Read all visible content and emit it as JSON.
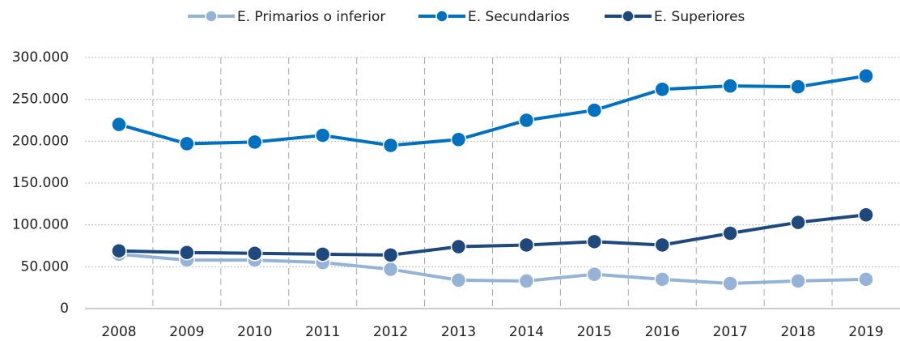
{
  "chart_data": {
    "type": "line",
    "categories": [
      "2008",
      "2009",
      "2010",
      "2011",
      "2012",
      "2013",
      "2014",
      "2015",
      "2016",
      "2017",
      "2018",
      "2019"
    ],
    "series": [
      {
        "name": "E. Primarios o inferior",
        "color": "#95b3d7",
        "values": [
          65000,
          58000,
          58000,
          55000,
          47000,
          34000,
          33000,
          41000,
          35000,
          30000,
          33000,
          35000
        ]
      },
      {
        "name": "E. Secundarios",
        "color": "#0070c0",
        "values": [
          220000,
          197000,
          199000,
          207000,
          195000,
          202000,
          225000,
          237000,
          262000,
          266000,
          265000,
          278000
        ]
      },
      {
        "name": "E. Superiores",
        "color": "#1f497d",
        "values": [
          69000,
          67000,
          66000,
          65000,
          64000,
          74000,
          76000,
          80000,
          76000,
          90000,
          103000,
          112000
        ]
      }
    ],
    "ylim": [
      0,
      300000
    ],
    "yticks": [
      0,
      {
        "value": 50000,
        "label": "50.000"
      },
      {
        "value": 100000,
        "label": "100.000"
      },
      {
        "value": 150000,
        "label": "150.000"
      },
      {
        "value": 200000,
        "label": "200.000"
      },
      {
        "value": 250000,
        "label": "250.000"
      },
      {
        "value": 300000,
        "label": "300.000"
      }
    ],
    "grid": true,
    "legend": "top"
  }
}
